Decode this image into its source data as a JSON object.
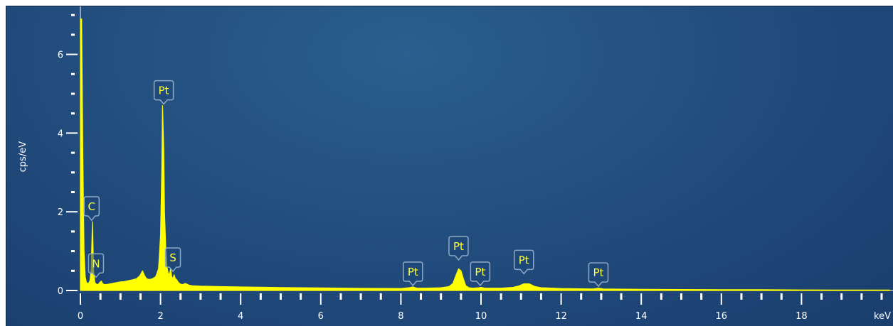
{
  "chart_data": {
    "type": "area",
    "xlabel": "keV",
    "ylabel": "cps/eV",
    "xlim": [
      0,
      20.2
    ],
    "ylim": [
      0,
      7.2
    ],
    "x_ticks": [
      "0",
      "2",
      "4",
      "6",
      "8",
      "10",
      "12",
      "14",
      "16",
      "18"
    ],
    "y_ticks": [
      "0",
      "2",
      "4",
      "6"
    ],
    "colors": {
      "spectrum": "#ffff00",
      "background": "#245282",
      "axis": "#ffffff",
      "label_border": "#8fa9c3"
    },
    "series": [
      {
        "x": [
          0.0,
          0.03,
          0.06,
          0.09,
          0.12,
          0.15,
          0.2,
          0.24,
          0.27,
          0.3,
          0.33,
          0.36,
          0.4,
          0.44,
          0.48,
          0.52,
          0.56,
          0.6,
          0.7,
          0.8,
          0.9,
          1.0,
          1.1,
          1.2,
          1.3,
          1.4,
          1.48,
          1.55,
          1.6,
          1.65,
          1.72,
          1.8,
          1.88,
          1.95,
          2.0,
          2.03,
          2.05,
          2.08,
          2.1,
          2.13,
          2.16,
          2.19,
          2.22,
          2.25,
          2.28,
          2.31,
          2.34,
          2.37,
          2.4,
          2.45,
          2.5,
          2.55,
          2.62,
          2.7,
          2.8,
          3.0,
          3.5,
          4.0,
          5.0,
          6.0,
          7.0,
          8.0,
          8.2,
          8.3,
          8.4,
          8.6,
          9.0,
          9.2,
          9.3,
          9.38,
          9.44,
          9.5,
          9.56,
          9.62,
          9.7,
          9.8,
          9.95,
          10.0,
          10.1,
          10.5,
          10.8,
          10.95,
          11.07,
          11.2,
          11.35,
          11.5,
          12.0,
          12.8,
          12.93,
          13.05,
          13.5,
          14.0,
          15.0,
          16.0,
          17.0,
          18.0,
          18.8,
          19.0,
          20.2
        ],
        "y": [
          6.9,
          6.9,
          3.5,
          1.0,
          0.35,
          0.2,
          0.18,
          0.25,
          0.55,
          1.75,
          0.5,
          0.2,
          0.16,
          0.15,
          0.2,
          0.24,
          0.17,
          0.15,
          0.16,
          0.18,
          0.2,
          0.22,
          0.23,
          0.25,
          0.27,
          0.3,
          0.37,
          0.5,
          0.38,
          0.3,
          0.28,
          0.3,
          0.35,
          0.55,
          1.4,
          3.0,
          4.7,
          3.6,
          2.0,
          1.1,
          0.6,
          0.45,
          0.38,
          0.55,
          0.35,
          0.3,
          0.4,
          0.3,
          0.28,
          0.2,
          0.16,
          0.15,
          0.18,
          0.14,
          0.12,
          0.11,
          0.1,
          0.09,
          0.075,
          0.065,
          0.055,
          0.05,
          0.07,
          0.09,
          0.06,
          0.06,
          0.07,
          0.1,
          0.18,
          0.4,
          0.55,
          0.5,
          0.3,
          0.12,
          0.07,
          0.06,
          0.07,
          0.08,
          0.06,
          0.06,
          0.08,
          0.12,
          0.17,
          0.17,
          0.1,
          0.07,
          0.05,
          0.04,
          0.06,
          0.04,
          0.035,
          0.03,
          0.025,
          0.02,
          0.02,
          0.015,
          0.012,
          0.01,
          0.01
        ]
      }
    ],
    "peak_labels": [
      {
        "text": "C",
        "x": 0.28,
        "y": 1.75
      },
      {
        "text": "N",
        "x": 0.39,
        "y": 0.3
      },
      {
        "text": "Pt",
        "x": 2.08,
        "y": 4.7
      },
      {
        "text": "S",
        "x": 2.31,
        "y": 0.45
      },
      {
        "text": "Pt",
        "x": 8.3,
        "y": 0.09
      },
      {
        "text": "Pt",
        "x": 9.44,
        "y": 0.74
      },
      {
        "text": "Pt",
        "x": 9.98,
        "y": 0.09
      },
      {
        "text": "Pt",
        "x": 11.07,
        "y": 0.39
      },
      {
        "text": "Pt",
        "x": 12.93,
        "y": 0.07
      }
    ]
  }
}
